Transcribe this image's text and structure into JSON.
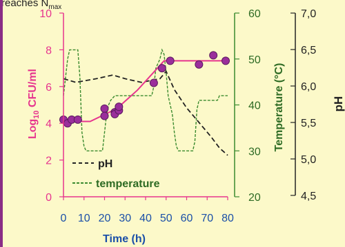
{
  "caption_fragment": "reaches N",
  "caption_subscript": "max",
  "colors": {
    "background": "#fcf9c9",
    "border": "#8b2d86",
    "cfu": "#e6348e",
    "cfu_marker": "#9a2e9b",
    "temperature": "#3a8a2e",
    "temperature_label": "#2e6b24",
    "ph": "#222222",
    "time_label": "#1a4fa8"
  },
  "chart_data": {
    "type": "scatter",
    "x_axis": {
      "label": "Time (h)",
      "range": [
        0,
        80
      ],
      "ticks": [
        "0",
        "10",
        "20",
        "30",
        "40",
        "50",
        "60",
        "70",
        "80"
      ]
    },
    "y_axis_left": {
      "label_main": "Log",
      "label_sub": "10",
      "label_rest": " CFU/ml",
      "range": [
        0,
        10
      ],
      "ticks": [
        "0",
        "2",
        "4",
        "6",
        "8",
        "10"
      ]
    },
    "y_axis_temperature": {
      "label": "Temperature (°C)",
      "range": [
        20,
        60
      ],
      "ticks": [
        "20",
        "30",
        "40",
        "50",
        "60"
      ]
    },
    "y_axis_ph": {
      "label": "pH",
      "range": [
        4.5,
        7.0
      ],
      "ticks": [
        "4,5",
        "5,0",
        "5,5",
        "6,0",
        "6,5",
        "7,0"
      ]
    },
    "legend": [
      {
        "label": "pH",
        "style": "black-dashed"
      },
      {
        "label": "temperature",
        "style": "green-dashed"
      }
    ],
    "series": [
      {
        "kind": "points",
        "axis": "left",
        "x": [
          0,
          2,
          4,
          7,
          20,
          20,
          25,
          25,
          27,
          27,
          44,
          48,
          52,
          66,
          73,
          79
        ],
        "y": [
          4.2,
          4.0,
          4.2,
          4.2,
          4.8,
          4.4,
          4.6,
          4.5,
          4.7,
          4.9,
          6.2,
          7.0,
          7.4,
          7.2,
          7.7,
          7.4
        ]
      },
      {
        "kind": "model",
        "axis": "left",
        "x": [
          0,
          13,
          26,
          36,
          49,
          80
        ],
        "y": [
          4.1,
          4.1,
          4.8,
          5.8,
          7.4,
          7.4
        ]
      },
      {
        "kind": "pH",
        "axis": "ph",
        "x": [
          0,
          6,
          16,
          24,
          30,
          38,
          47,
          50,
          54,
          60,
          66,
          72,
          76,
          80
        ],
        "y": [
          6.1,
          6.05,
          6.1,
          6.15,
          6.1,
          6.05,
          6.1,
          6.2,
          5.95,
          5.7,
          5.5,
          5.3,
          5.15,
          5.05
        ]
      },
      {
        "kind": "temperature",
        "axis": "temperature",
        "x": [
          0,
          2,
          3,
          5,
          7,
          8,
          9,
          10,
          11,
          12,
          13,
          19,
          20,
          21,
          22,
          23,
          25,
          26,
          27,
          28,
          30,
          43,
          44,
          45,
          47,
          48,
          49,
          50,
          51,
          52,
          53,
          54,
          55,
          56,
          57,
          63,
          64,
          65,
          66,
          67,
          69,
          70,
          73,
          74,
          75,
          76,
          77,
          80
        ],
        "y": [
          42,
          50,
          52,
          52,
          52,
          46,
          34,
          31,
          30,
          30,
          30,
          30,
          34,
          38,
          40,
          41,
          42,
          42,
          42,
          42,
          42,
          42,
          44,
          48,
          50,
          52,
          51,
          47,
          42,
          40,
          38,
          34,
          31,
          30,
          30,
          30,
          32,
          39,
          41,
          41,
          41,
          41,
          41,
          41,
          41,
          42,
          42,
          42
        ]
      }
    ]
  }
}
